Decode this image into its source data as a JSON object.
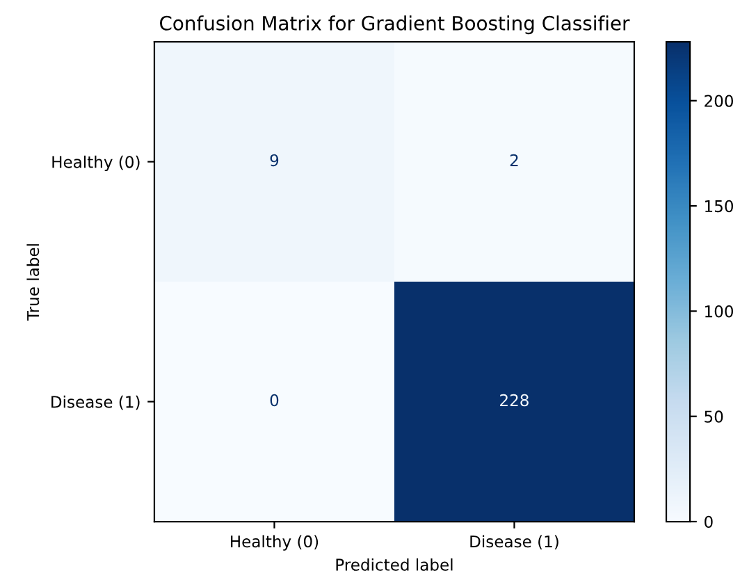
{
  "chart_data": {
    "type": "heatmap",
    "title": "Confusion Matrix for Gradient Boosting Classifier",
    "xlabel": "Predicted label",
    "ylabel": "True label",
    "categories": [
      "Healthy (0)",
      "Disease (1)"
    ],
    "y_categories": [
      "Healthy (0)",
      "Disease (1)"
    ],
    "cells": [
      [
        9,
        2
      ],
      [
        0,
        228
      ]
    ],
    "data_labels": true,
    "clim": [
      0,
      228
    ],
    "cticks": [
      0,
      50,
      100,
      150,
      200
    ]
  }
}
